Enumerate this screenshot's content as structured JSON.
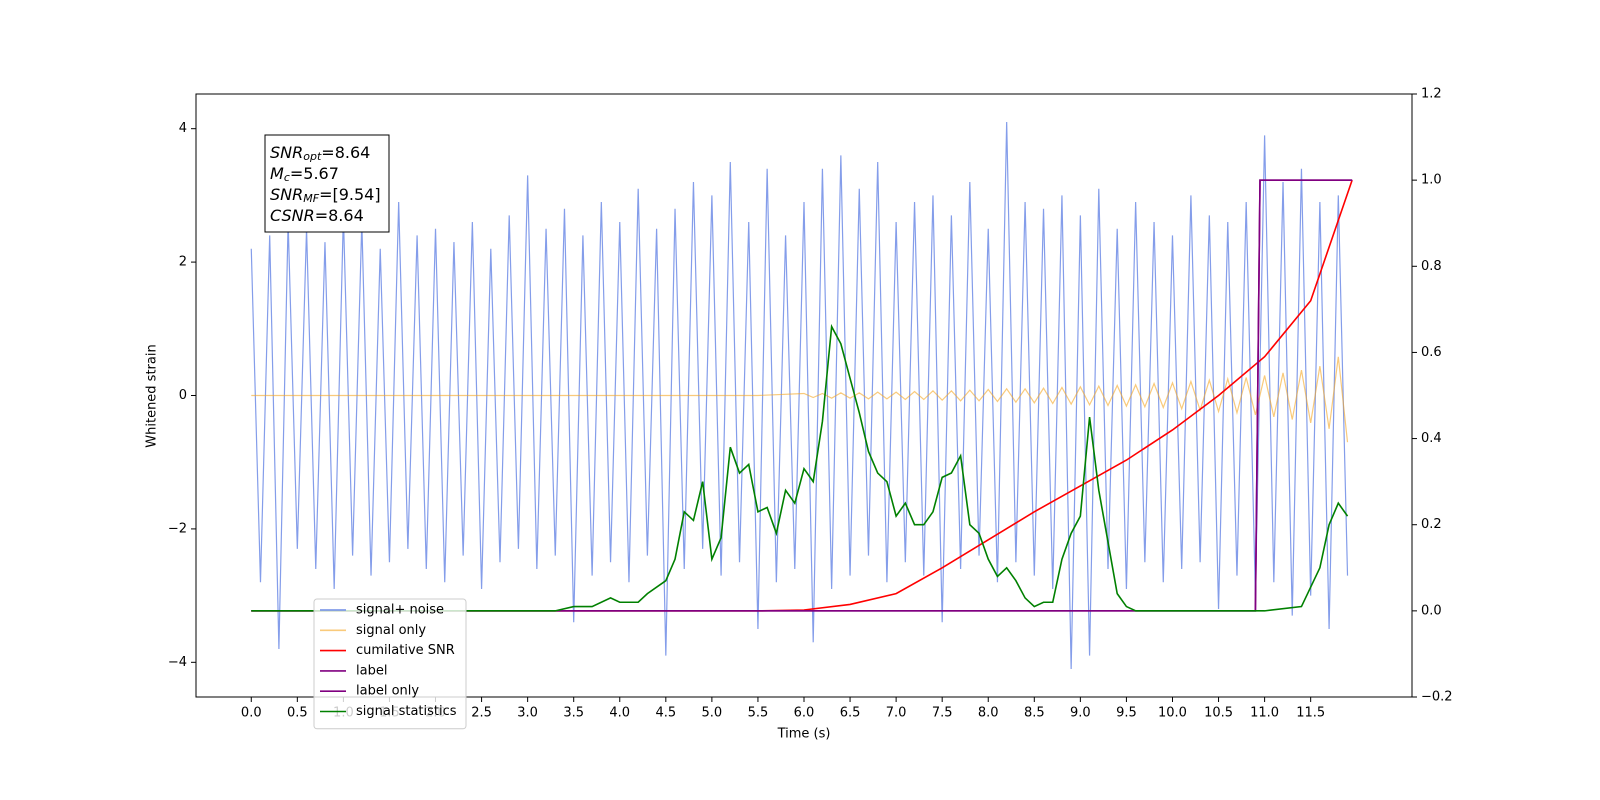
{
  "chart_data": {
    "type": "line",
    "xlabel": "Time (s)",
    "ylabel": "Whitened strain",
    "xlim": [
      -0.6,
      12.6
    ],
    "xticks": [
      {
        "value": 0,
        "label": "0.0"
      },
      0.5,
      {
        "value": 1,
        "label": "1.0"
      },
      1.5,
      {
        "value": 2,
        "label": "2.0"
      },
      2.5,
      {
        "value": 3,
        "label": "3.0"
      },
      3.5,
      {
        "value": 4,
        "label": "4.0"
      },
      4.5,
      {
        "value": 5,
        "label": "5.0"
      },
      5.5,
      {
        "value": 6,
        "label": "6.0"
      },
      6.5,
      {
        "value": 7,
        "label": "7.0"
      },
      7.5,
      {
        "value": 8,
        "label": "8.0"
      },
      8.5,
      {
        "value": 9,
        "label": "9.0"
      },
      9.5,
      {
        "value": 10,
        "label": "10.0"
      },
      10.5,
      {
        "value": 11,
        "label": "11.0"
      },
      11.5
    ],
    "ylim": [
      -4.52,
      4.52
    ],
    "yticks": [
      {
        "value": -4,
        "label": "−4"
      },
      {
        "value": -2,
        "label": "−2"
      },
      0,
      2,
      4
    ],
    "y2lim": [
      -0.2,
      1.2
    ],
    "y2ticks": [
      {
        "value": -0.2,
        "label": "−0.2"
      },
      {
        "value": 0,
        "label": "0.0"
      },
      0.2,
      0.4,
      0.6,
      0.8,
      {
        "value": 1,
        "label": "1.0"
      },
      1.2
    ],
    "legend": "lower left",
    "annotations": [
      {
        "base": "SNR",
        "sub": "opt",
        "text": "=8.64"
      },
      {
        "base": "M",
        "sub": "c",
        "text": "=5.67"
      },
      {
        "base": "SNR",
        "sub": "MF",
        "text": "=[9.54]"
      },
      {
        "base": "CSNR",
        "sub": "",
        "text": "=8.64"
      }
    ],
    "series": [
      {
        "name": "signal+ noise",
        "color": "#6f8ce6",
        "axis": "y",
        "x": [
          0,
          0.1,
          0.2,
          0.3,
          0.4,
          0.5,
          0.6,
          0.7,
          0.8,
          0.9,
          1,
          1.1,
          1.2,
          1.3,
          1.4,
          1.5,
          1.6,
          1.7,
          1.8,
          1.9,
          2,
          2.1,
          2.2,
          2.3,
          2.4,
          2.5,
          2.6,
          2.7,
          2.8,
          2.9,
          3,
          3.1,
          3.2,
          3.3,
          3.4,
          3.5,
          3.6,
          3.7,
          3.8,
          3.9,
          4,
          4.1,
          4.2,
          4.3,
          4.4,
          4.5,
          4.6,
          4.7,
          4.8,
          4.9,
          5,
          5.1,
          5.2,
          5.3,
          5.4,
          5.5,
          5.6,
          5.7,
          5.8,
          5.9,
          6,
          6.1,
          6.2,
          6.3,
          6.4,
          6.5,
          6.6,
          6.7,
          6.8,
          6.9,
          7,
          7.1,
          7.2,
          7.3,
          7.4,
          7.5,
          7.6,
          7.7,
          7.8,
          7.9,
          8,
          8.1,
          8.2,
          8.3,
          8.4,
          8.5,
          8.6,
          8.7,
          8.8,
          8.9,
          9,
          9.1,
          9.2,
          9.3,
          9.4,
          9.5,
          9.6,
          9.7,
          9.8,
          9.9,
          10,
          10.1,
          10.2,
          10.3,
          10.4,
          10.5,
          10.6,
          10.7,
          10.8,
          10.9,
          11,
          11.1,
          11.2,
          11.3,
          11.4,
          11.5,
          11.6,
          11.7,
          11.8,
          11.9
        ],
        "values": [
          2.2,
          -2.8,
          2.4,
          -3.8,
          2.6,
          -2.3,
          2.5,
          -2.6,
          2.3,
          -2.9,
          2.7,
          -2.4,
          2.6,
          -2.7,
          2.2,
          -2.5,
          2.9,
          -2.3,
          2.4,
          -2.6,
          2.5,
          -2.8,
          2.3,
          -2.4,
          2.6,
          -2.9,
          2.2,
          -2.5,
          2.7,
          -2.3,
          3.3,
          -2.6,
          2.5,
          -2.4,
          2.8,
          -3.4,
          2.4,
          -2.7,
          2.9,
          -2.5,
          2.6,
          -2.8,
          3.1,
          -2.4,
          2.5,
          -3.9,
          2.8,
          -2.6,
          3.2,
          -2.3,
          3.0,
          -2.7,
          3.5,
          -2.5,
          2.6,
          -3.5,
          3.4,
          -2.8,
          2.4,
          -2.6,
          2.9,
          -3.7,
          3.4,
          -2.9,
          3.6,
          -2.7,
          3.1,
          -2.4,
          3.5,
          -2.8,
          2.6,
          -2.5,
          2.9,
          -2.7,
          3.0,
          -3.4,
          2.7,
          -2.6,
          3.2,
          -2.4,
          2.5,
          -2.8,
          4.1,
          -2.5,
          2.9,
          -2.7,
          2.8,
          -2.9,
          3.0,
          -4.1,
          2.7,
          -3.9,
          3.1,
          -2.6,
          2.5,
          -2.9,
          2.9,
          -2.5,
          2.6,
          -2.8,
          2.4,
          -2.6,
          3.0,
          -2.5,
          2.7,
          -3.2,
          2.6,
          -2.7,
          2.9,
          -3.0,
          3.9,
          -2.8,
          3.2,
          -3.3,
          3.4,
          -3.0,
          2.9,
          -3.5,
          3.0,
          -2.7
        ]
      },
      {
        "name": "signal only",
        "color": "#f5a623",
        "axis": "y",
        "x": [
          0,
          0.5,
          1,
          1.5,
          2,
          2.5,
          3,
          3.5,
          4,
          4.5,
          5,
          5.5,
          6,
          6.1,
          6.2,
          6.3,
          6.4,
          6.5,
          6.6,
          6.7,
          6.8,
          6.9,
          7,
          7.1,
          7.2,
          7.3,
          7.4,
          7.5,
          7.6,
          7.7,
          7.8,
          7.9,
          8,
          8.1,
          8.2,
          8.3,
          8.4,
          8.5,
          8.6,
          8.7,
          8.8,
          8.9,
          9,
          9.1,
          9.2,
          9.3,
          9.4,
          9.5,
          9.6,
          9.7,
          9.8,
          9.9,
          10,
          10.1,
          10.2,
          10.3,
          10.4,
          10.5,
          10.6,
          10.7,
          10.8,
          10.9,
          11,
          11.1,
          11.2,
          11.3,
          11.4,
          11.5,
          11.6,
          11.7,
          11.8,
          11.9
        ],
        "values": [
          0,
          0,
          0,
          0,
          0,
          0,
          0,
          0,
          0,
          0,
          0,
          0,
          0.03,
          -0.03,
          0.03,
          -0.04,
          0.04,
          -0.04,
          0.04,
          -0.05,
          0.05,
          -0.05,
          0.05,
          -0.06,
          0.06,
          -0.06,
          0.07,
          -0.07,
          0.07,
          -0.08,
          0.08,
          -0.08,
          0.09,
          -0.09,
          0.1,
          -0.1,
          0.1,
          -0.11,
          0.11,
          -0.12,
          0.12,
          -0.13,
          0.13,
          -0.14,
          0.14,
          -0.15,
          0.15,
          -0.16,
          0.16,
          -0.17,
          0.18,
          -0.18,
          0.19,
          -0.2,
          0.21,
          -0.22,
          0.23,
          -0.24,
          0.25,
          -0.26,
          0.27,
          -0.29,
          0.3,
          -0.32,
          0.34,
          -0.36,
          0.38,
          -0.41,
          0.44,
          -0.5,
          0.58,
          -0.7
        ]
      },
      {
        "name": "cumilative SNR",
        "color": "#ff0000",
        "axis": "y2",
        "x": [
          0,
          5.5,
          6,
          6.5,
          7,
          7.5,
          8,
          8.5,
          9,
          9.5,
          10,
          10.5,
          11,
          11.5,
          11.95
        ],
        "values": [
          0,
          0,
          0.002,
          0.015,
          0.04,
          0.1,
          0.165,
          0.23,
          0.29,
          0.35,
          0.42,
          0.5,
          0.59,
          0.72,
          1.0
        ]
      },
      {
        "name": "label",
        "color": "#800080",
        "axis": "y2",
        "x": [
          0,
          10.9,
          10.95,
          11.95
        ],
        "values": [
          0,
          0,
          1,
          1
        ]
      },
      {
        "name": "label only",
        "color": "#800080",
        "axis": "y2",
        "x": [
          0,
          10.9,
          10.95,
          11.95
        ],
        "values": [
          0,
          0,
          1,
          1
        ]
      },
      {
        "name": "signal statistics",
        "color": "#008000",
        "axis": "y2",
        "x": [
          0,
          3.3,
          3.5,
          3.7,
          3.9,
          4.0,
          4.2,
          4.3,
          4.5,
          4.6,
          4.7,
          4.8,
          4.9,
          5.0,
          5.1,
          5.2,
          5.3,
          5.4,
          5.5,
          5.6,
          5.7,
          5.8,
          5.9,
          6.0,
          6.1,
          6.2,
          6.3,
          6.4,
          6.5,
          6.6,
          6.7,
          6.8,
          6.9,
          7.0,
          7.1,
          7.2,
          7.3,
          7.4,
          7.5,
          7.6,
          7.7,
          7.8,
          7.9,
          8.0,
          8.1,
          8.2,
          8.3,
          8.4,
          8.5,
          8.6,
          8.7,
          8.8,
          8.9,
          9.0,
          9.1,
          9.2,
          9.3,
          9.4,
          9.5,
          9.6,
          10.0,
          11.0,
          11.4,
          11.6,
          11.7,
          11.8,
          11.9
        ],
        "values": [
          0,
          0,
          0.01,
          0.01,
          0.03,
          0.02,
          0.02,
          0.04,
          0.07,
          0.12,
          0.23,
          0.21,
          0.3,
          0.12,
          0.17,
          0.38,
          0.32,
          0.34,
          0.23,
          0.24,
          0.18,
          0.28,
          0.25,
          0.33,
          0.3,
          0.44,
          0.66,
          0.62,
          0.54,
          0.46,
          0.37,
          0.32,
          0.3,
          0.22,
          0.25,
          0.2,
          0.2,
          0.23,
          0.31,
          0.32,
          0.36,
          0.2,
          0.18,
          0.12,
          0.08,
          0.1,
          0.07,
          0.03,
          0.01,
          0.02,
          0.02,
          0.12,
          0.18,
          0.22,
          0.45,
          0.28,
          0.16,
          0.04,
          0.01,
          0,
          0,
          0,
          0.01,
          0.1,
          0.2,
          0.25,
          0.22
        ]
      }
    ]
  }
}
